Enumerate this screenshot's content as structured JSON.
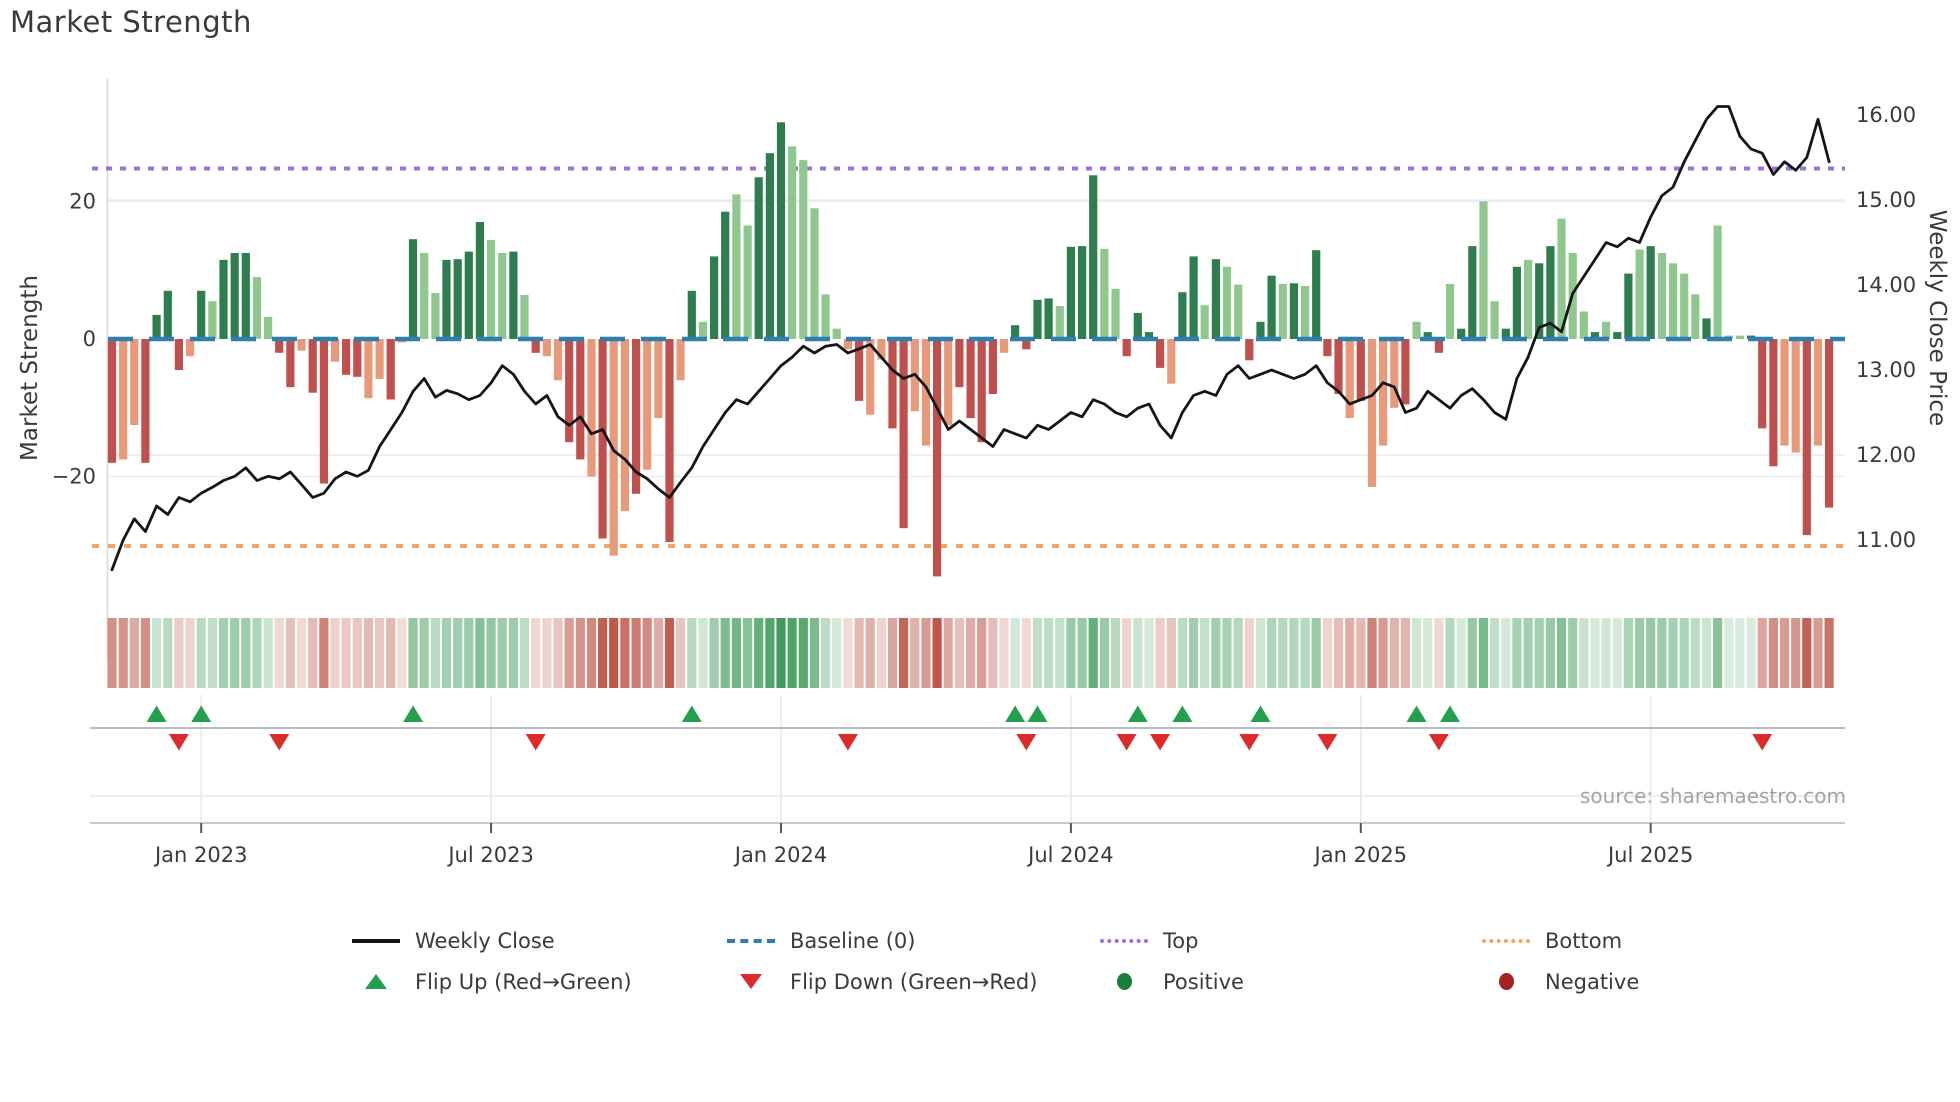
{
  "title": "Market Strength",
  "source_note": "source: sharemaestro.com",
  "axes": {
    "left_title": "Market Strength",
    "right_title": "Weekly Close Price",
    "left_ticks": [
      {
        "label": "20",
        "value": 20
      },
      {
        "label": "0",
        "value": 0
      },
      {
        "label": "−20",
        "value": -20
      }
    ],
    "right_ticks": [
      {
        "label": "16.00",
        "value": 16
      },
      {
        "label": "15.00",
        "value": 15
      },
      {
        "label": "14.00",
        "value": 14
      },
      {
        "label": "13.00",
        "value": 13
      },
      {
        "label": "12.00",
        "value": 12
      },
      {
        "label": "11.00",
        "value": 11
      }
    ],
    "x_ticks": [
      {
        "label": "Jan 2023",
        "week": 8
      },
      {
        "label": "Jul 2023",
        "week": 34
      },
      {
        "label": "Jan 2024",
        "week": 60
      },
      {
        "label": "Jul 2024",
        "week": 86
      },
      {
        "label": "Jan 2025",
        "week": 112
      },
      {
        "label": "Jul 2025",
        "week": 138
      }
    ]
  },
  "legend": {
    "rows": [
      [
        {
          "key": "weekly-close",
          "label": "Weekly Close",
          "swatch": "line",
          "color": "#151515"
        },
        {
          "key": "baseline",
          "label": "Baseline (0)",
          "swatch": "dashed",
          "color": "#2e7eb3"
        },
        {
          "key": "top",
          "label": "Top",
          "swatch": "dotted",
          "color": "#9d6fd8"
        },
        {
          "key": "bottom",
          "label": "Bottom",
          "swatch": "dotted",
          "color": "#f2a55f"
        }
      ],
      [
        {
          "key": "flip-up",
          "label": "Flip Up (Red→Green)",
          "swatch": "triangle-up",
          "color": "#23a04d"
        },
        {
          "key": "flip-down",
          "label": "Flip Down (Green→Red)",
          "swatch": "triangle-down",
          "color": "#db2b2b"
        },
        {
          "key": "positive",
          "label": "Positive",
          "swatch": "circle",
          "color": "#1b7e37"
        },
        {
          "key": "negative",
          "label": "Negative",
          "swatch": "circle",
          "color": "#a62126"
        }
      ]
    ]
  },
  "colors": {
    "bar_pos_dark": "#2e7d4e",
    "bar_pos_light": "#8fc78e",
    "bar_neg_dark": "#c0504e",
    "bar_neg_light": "#e8997a",
    "price_line": "#151515",
    "baseline": "#2e7eb3",
    "top_line": "#9d6fd8",
    "bottom_line": "#f2a55f",
    "flip_up": "#23a04d",
    "flip_down": "#db2b2b",
    "grid": "#eaeaf2",
    "spine": "#c9c9d3",
    "marker_rail": "#b9bcc4",
    "tick_text": "#3a3a3a",
    "heat_green_base": [
      56,
      152,
      84
    ],
    "heat_red_base": [
      186,
      80,
      66
    ]
  },
  "chart_data": {
    "type": "composite",
    "x_unit": "weekly",
    "weeks": 155,
    "x_range_note": "weekly data from ~Nov 2022 to ~Oct 2025",
    "left_axis_range": [
      -37,
      37.5
    ],
    "right_axis_range": [
      10.45,
      16.4
    ],
    "grid": "horizontal-light",
    "legend_position": "bottom-center",
    "series": [
      {
        "name": "Market Strength",
        "type": "bar",
        "axis": "left",
        "shades": "dllddddldldddllddlddlddlldldllddddlldldllddldlldlldldlddlldddlllllldllddlldldddvlddddldddllddddlddldlldddldldddldllldlddlddllddlddllldlddldlllldllldddlldld",
        "values": [
          -18,
          -17.5,
          -12.5,
          -18,
          3.5,
          7,
          -4.5,
          -2.5,
          7,
          5.5,
          11.5,
          12.5,
          12.5,
          9,
          3.2,
          -2,
          -7,
          -1.7,
          -7.8,
          -21,
          -3.3,
          -5.2,
          -5.5,
          -8.6,
          -5.8,
          -8.8,
          -0.5,
          14.5,
          12.5,
          6.7,
          11.5,
          11.6,
          12.7,
          17,
          14.4,
          12.5,
          12.7,
          6.4,
          -2,
          -2.5,
          -6,
          -15,
          -17.5,
          -20,
          -29,
          -31.5,
          -25,
          -22.5,
          -19,
          -11.5,
          -29.5,
          -6,
          7,
          2.5,
          12,
          18.5,
          21,
          16.5,
          23.5,
          27,
          31.5,
          28,
          26,
          19,
          6.5,
          1.5,
          -1.5,
          -9,
          -11,
          -3,
          -13,
          -27.5,
          -10.5,
          -15.5,
          -34.5,
          -12.5,
          -7,
          -11.5,
          -15,
          -8,
          -2,
          2,
          -1.5,
          5.7,
          5.9,
          4.8,
          13.4,
          13.5,
          23.8,
          13.1,
          7.3,
          -2.5,
          3.8,
          1,
          -4.2,
          -6.5,
          6.8,
          12,
          4.9,
          11.6,
          10.5,
          7.9,
          -3.1,
          2.5,
          9.2,
          8,
          8.1,
          7.7,
          12.9,
          -2.5,
          -8,
          -11.5,
          -9,
          -21.5,
          -15.5,
          -10,
          -9.5,
          2.5,
          1,
          -2,
          8,
          1.5,
          13.5,
          20,
          5.5,
          1.5,
          10.5,
          11.5,
          11,
          13.5,
          17.5,
          12.5,
          4,
          1,
          2.5,
          1,
          9.5,
          13,
          13.5,
          12.5,
          11,
          9.5,
          6.5,
          3,
          16.5,
          0.5,
          0.5,
          0.5,
          -13,
          -18.5,
          -15.5,
          -16.5,
          -28.5,
          -15.5,
          -24.5
        ]
      },
      {
        "name": "Weekly Close",
        "type": "line",
        "axis": "right",
        "values": [
          10.65,
          11.0,
          11.25,
          11.1,
          11.4,
          11.3,
          11.5,
          11.45,
          11.55,
          11.62,
          11.7,
          11.75,
          11.85,
          11.7,
          11.75,
          11.72,
          11.8,
          11.65,
          11.5,
          11.55,
          11.72,
          11.8,
          11.75,
          11.82,
          12.1,
          12.3,
          12.5,
          12.75,
          12.9,
          12.68,
          12.76,
          12.72,
          12.65,
          12.7,
          12.85,
          13.05,
          12.95,
          12.75,
          12.6,
          12.7,
          12.45,
          12.35,
          12.45,
          12.25,
          12.3,
          12.05,
          11.95,
          11.8,
          11.72,
          11.6,
          11.5,
          11.68,
          11.85,
          12.1,
          12.3,
          12.5,
          12.65,
          12.6,
          12.75,
          12.9,
          13.05,
          13.15,
          13.28,
          13.2,
          13.28,
          13.3,
          13.2,
          13.25,
          13.3,
          13.15,
          13.0,
          12.9,
          12.95,
          12.8,
          12.55,
          12.3,
          12.4,
          12.3,
          12.2,
          12.1,
          12.3,
          12.25,
          12.2,
          12.35,
          12.3,
          12.4,
          12.5,
          12.45,
          12.65,
          12.6,
          12.5,
          12.45,
          12.55,
          12.6,
          12.35,
          12.2,
          12.5,
          12.7,
          12.75,
          12.7,
          12.95,
          13.05,
          12.9,
          12.95,
          13.0,
          12.95,
          12.9,
          12.95,
          13.05,
          12.85,
          12.75,
          12.6,
          12.65,
          12.7,
          12.85,
          12.8,
          12.5,
          12.55,
          12.75,
          12.65,
          12.55,
          12.7,
          12.78,
          12.65,
          12.5,
          12.42,
          12.9,
          13.15,
          13.5,
          13.55,
          13.45,
          13.9,
          14.1,
          14.3,
          14.5,
          14.45,
          14.55,
          14.5,
          14.8,
          15.05,
          15.15,
          15.45,
          15.7,
          15.95,
          16.1,
          16.1,
          15.75,
          15.6,
          15.55,
          15.3,
          15.45,
          15.35,
          15.5,
          15.95,
          15.45
        ]
      }
    ],
    "reference_lines": {
      "baseline_strength": 0,
      "top_price": 15.37,
      "bottom_price": 10.93
    },
    "flip_up_weeks": [
      4,
      8,
      27,
      52,
      81,
      83,
      92,
      96,
      103,
      117,
      120
    ],
    "flip_down_weeks": [
      6,
      15,
      38,
      66,
      82,
      91,
      94,
      102,
      109,
      119,
      148
    ],
    "heatmap": "strip below main pane; one cell per week, red-to-green pastel shade proportional to strength value"
  }
}
